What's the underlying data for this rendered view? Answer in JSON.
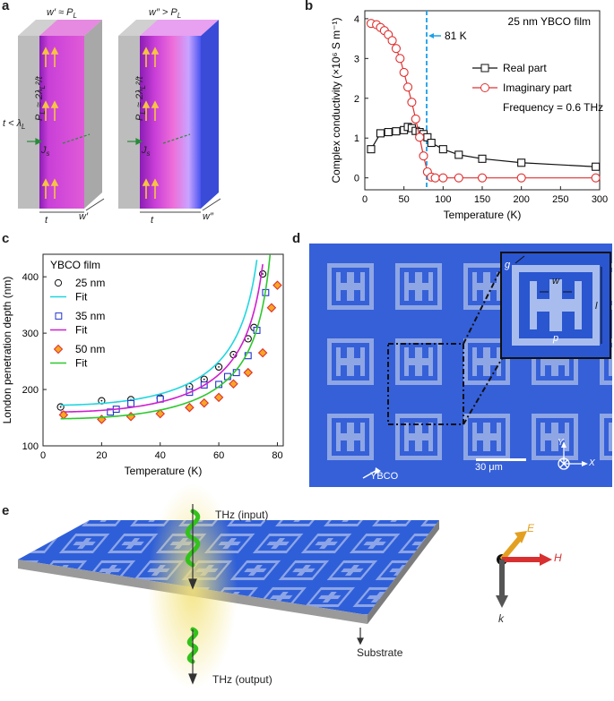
{
  "panels": {
    "a": {
      "label": "a",
      "left": {
        "title_text": "w′ ≈ P",
        "title_sub": "L",
        "t_lambda_text": "t < λ",
        "t_lambda_sub": "L",
        "formula_text": "P",
        "formula_sub": "L",
        "formula_rest": " ≈ 2λ",
        "formula_sub2": "L",
        "formula_end": "²/t",
        "js_text": "J",
        "js_sub": "s",
        "t_label": "t",
        "w_label": "w′"
      },
      "right": {
        "title_text": "w″ > P",
        "title_sub": "L",
        "formula_text": "P",
        "formula_sub": "L",
        "formula_rest": " ≈ 2λ",
        "formula_sub2": "L",
        "formula_end": "²/t",
        "js_text": "J",
        "js_sub": "s",
        "t_label": "t",
        "w_label": "w″"
      }
    },
    "b": {
      "label": "b"
    },
    "c": {
      "label": "c"
    },
    "d": {
      "label": "d",
      "inset_g": "g",
      "inset_w": "w",
      "inset_l": "l",
      "inset_p": "p",
      "scalebar": "30 μm",
      "material": "YBCO",
      "axis_y": "Y",
      "axis_x": "X"
    },
    "e": {
      "label": "e",
      "thz_in": "THz (input)",
      "thz_out": "THz (output)",
      "substrate": "Substrate",
      "field_e": "E",
      "field_h": "H",
      "field_k": "k"
    }
  },
  "colors": {
    "film_magenta": "#c93fd8",
    "substrate_gray": "#b7b7b7",
    "ybco_blue": "#2f5fd8",
    "fit_cyan": "#20d6e0",
    "fit_magenta": "#d01ed0",
    "fit_green": "#2ec82e",
    "real_black": "#111111",
    "imag_red": "#e03030",
    "dashed_blue": "#1aa0e8"
  },
  "chart_data": [
    {
      "type": "line",
      "title": "25 nm YBCO film",
      "xlabel": "Temperature (K)",
      "ylabel": "Complex conductivity (×10⁶ S m⁻¹)",
      "xlim": [
        0,
        300
      ],
      "ylim": [
        -0.3,
        4.2
      ],
      "xticks": [
        "0",
        "50",
        "100",
        "150",
        "200",
        "250",
        "300"
      ],
      "yticks": [
        "0",
        "1",
        "2",
        "3",
        "4"
      ],
      "annotation": "81 K",
      "annotation_x": 79,
      "note": "Frequency = 0.6 THz",
      "legend_position": "right",
      "series": [
        {
          "name": "Real part",
          "x": [
            8,
            20,
            30,
            40,
            50,
            55,
            60,
            65,
            70,
            75,
            80,
            85,
            100,
            120,
            150,
            200,
            295
          ],
          "y": [
            0.72,
            1.12,
            1.15,
            1.17,
            1.2,
            1.28,
            1.25,
            1.18,
            1.15,
            1.1,
            1.02,
            0.88,
            0.72,
            0.58,
            0.48,
            0.38,
            0.28
          ]
        },
        {
          "name": "Imaginary part",
          "x": [
            8,
            15,
            20,
            25,
            30,
            35,
            40,
            45,
            50,
            55,
            60,
            65,
            70,
            75,
            80,
            85,
            90,
            100,
            120,
            150,
            200,
            295
          ],
          "y": [
            3.88,
            3.85,
            3.78,
            3.7,
            3.6,
            3.45,
            3.25,
            3.0,
            2.65,
            2.28,
            1.9,
            1.48,
            1.02,
            0.55,
            0.15,
            0.02,
            0,
            0,
            0,
            0,
            0,
            0
          ]
        }
      ]
    },
    {
      "type": "scatter",
      "title": "YBCO film",
      "xlabel": "Temperature (K)",
      "ylabel": "London penetration depth (nm)",
      "xlim": [
        0,
        82
      ],
      "ylim": [
        100,
        440
      ],
      "xticks": [
        "0",
        "20",
        "40",
        "60",
        "80"
      ],
      "yticks": [
        "100",
        "200",
        "300",
        "400"
      ],
      "legend_position": "top-left",
      "series": [
        {
          "name": "25 nm",
          "x": [
            6,
            20,
            30,
            40,
            50,
            55,
            60,
            65,
            70,
            72,
            75
          ],
          "y": [
            169,
            180,
            182,
            185,
            205,
            218,
            240,
            262,
            290,
            310,
            405
          ]
        },
        {
          "name": "Fit",
          "curve": "25",
          "tc": 78.5,
          "lambda0": 172
        },
        {
          "name": "35 nm",
          "x": [
            23,
            25,
            30,
            40,
            50,
            55,
            60,
            63,
            66,
            70,
            73,
            76
          ],
          "y": [
            160,
            165,
            175,
            183,
            195,
            208,
            209,
            223,
            230,
            260,
            305,
            372
          ]
        },
        {
          "name": "Fit",
          "curve": "35",
          "tc": 80.0,
          "lambda0": 160
        },
        {
          "name": "50 nm",
          "x": [
            7,
            20,
            30,
            40,
            50,
            55,
            60,
            65,
            70,
            75,
            78,
            80
          ],
          "y": [
            155,
            147,
            152,
            157,
            168,
            176,
            186,
            210,
            230,
            265,
            345,
            385
          ]
        },
        {
          "name": "Fit",
          "curve": "50",
          "tc": 81.5,
          "lambda0": 148
        }
      ]
    }
  ]
}
